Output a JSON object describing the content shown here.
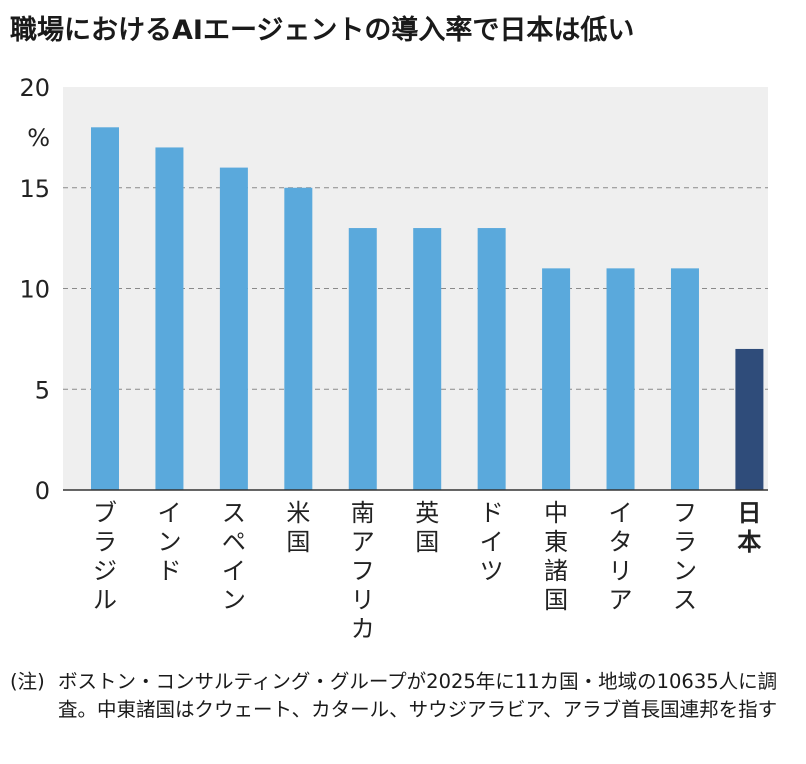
{
  "title": "職場におけるAIエージェントの導入率で日本は低い",
  "chart_data": {
    "type": "bar",
    "unit": "%",
    "categories": [
      "ブラジル",
      "インド",
      "スペイン",
      "米国",
      "南アフリカ",
      "英国",
      "ドイツ",
      "中東諸国",
      "イタリア",
      "フランス",
      "日本"
    ],
    "values": [
      18,
      17,
      16,
      15,
      13,
      13,
      13,
      11,
      11,
      11,
      7
    ],
    "highlight": "日本",
    "ylim": [
      0,
      20
    ],
    "yticks": [
      0,
      5,
      10,
      15,
      20
    ],
    "grid": true,
    "colors": {
      "bar": "#5aa9dc",
      "highlight": "#2f4c7a",
      "plot_bg": "#efefef",
      "grid": "#8a8a8a"
    }
  },
  "note": {
    "mark": "(注)",
    "text": "ボストン・コンサルティング・グループが2025年に11カ国・地域の10635人に調査。中東諸国はクウェート、カタール、サウジアラビア、アラブ首長国連邦を指す"
  }
}
